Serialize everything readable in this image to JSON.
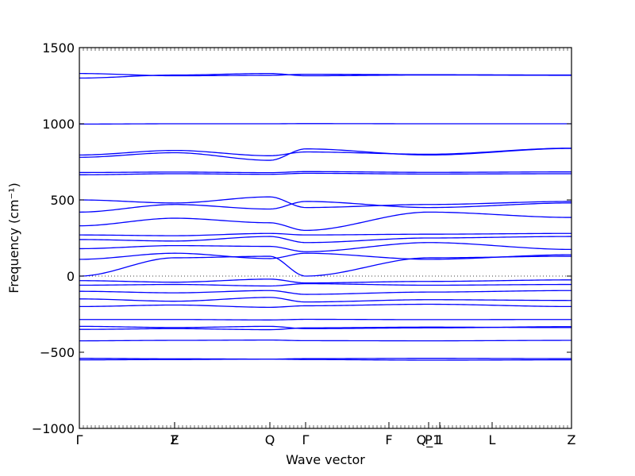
{
  "chart_data": {
    "type": "line",
    "xlabel": "Wave vector",
    "ylabel": "Frequency (cm⁻¹)",
    "ylim": [
      -1000,
      1500
    ],
    "yticks": [
      1500,
      1000,
      500,
      0,
      -500,
      -1000
    ],
    "ytick_labels": [
      "1500",
      "1000",
      "500",
      "0",
      "−500",
      "−1000"
    ],
    "high_symmetry_points": [
      {
        "label": "Γ",
        "position": 0.0
      },
      {
        "label": "Z",
        "position": 0.1935
      },
      {
        "label": "F",
        "position": 0.1935
      },
      {
        "label": "Q",
        "position": 0.3871
      },
      {
        "label": "Γ",
        "position": 0.4597
      },
      {
        "label": "F",
        "position": 0.629
      },
      {
        "label": "P",
        "position": 0.7097
      },
      {
        "label": "Q_1",
        "position": 0.7097
      },
      {
        "label": "1",
        "position": 0.7323
      },
      {
        "label": "L",
        "position": 0.8387
      },
      {
        "label": "Z",
        "position": 1.0
      }
    ],
    "zero_line": 0,
    "color": "#0000ff",
    "series": [
      {
        "values": [
          -550,
          -548,
          -545,
          -548,
          -552,
          -550
        ]
      },
      {
        "values": [
          -540,
          -543,
          -545,
          -542,
          -540,
          -542
        ]
      },
      {
        "values": [
          -425,
          -422,
          -420,
          -424,
          -425,
          -422
        ]
      },
      {
        "values": [
          -350,
          -345,
          -352,
          -340,
          -335,
          -338
        ]
      },
      {
        "values": [
          -330,
          -338,
          -330,
          -345,
          -340,
          -332
        ]
      },
      {
        "values": [
          -285,
          -285,
          -288,
          -284,
          -286,
          -285
        ]
      },
      {
        "values": [
          -200,
          -190,
          -205,
          -195,
          -185,
          -200
        ]
      },
      {
        "values": [
          -150,
          -165,
          -140,
          -170,
          -155,
          -160
        ]
      },
      {
        "values": [
          -100,
          -110,
          -95,
          -120,
          -105,
          -95
        ]
      },
      {
        "values": [
          -60,
          -55,
          -65,
          -50,
          -60,
          -55
        ]
      },
      {
        "values": [
          -30,
          -40,
          -20,
          -45,
          -35,
          -25
        ]
      },
      {
        "values": [
          0,
          120,
          130,
          0,
          120,
          130
        ]
      },
      {
        "values": [
          110,
          150,
          115,
          150,
          110,
          140
        ]
      },
      {
        "values": [
          180,
          200,
          195,
          160,
          220,
          175
        ]
      },
      {
        "values": [
          240,
          230,
          260,
          220,
          250,
          260
        ]
      },
      {
        "values": [
          270,
          265,
          280,
          270,
          275,
          280
        ]
      },
      {
        "values": [
          330,
          380,
          350,
          300,
          420,
          385
        ]
      },
      {
        "values": [
          420,
          470,
          440,
          490,
          450,
          480
        ]
      },
      {
        "values": [
          500,
          480,
          520,
          450,
          470,
          490
        ]
      },
      {
        "values": [
          665,
          672,
          668,
          675,
          670,
          672
        ]
      },
      {
        "values": [
          680,
          683,
          679,
          686,
          681,
          684
        ]
      },
      {
        "values": [
          795,
          825,
          790,
          815,
          800,
          840
        ]
      },
      {
        "values": [
          780,
          810,
          760,
          835,
          795,
          838
        ]
      },
      {
        "values": [
          998,
          1000,
          1000,
          1001,
          1000,
          1000
        ]
      },
      {
        "values": [
          1300,
          1320,
          1330,
          1315,
          1320,
          1318
        ]
      },
      {
        "values": [
          1330,
          1315,
          1318,
          1325,
          1322,
          1320
        ]
      }
    ]
  }
}
